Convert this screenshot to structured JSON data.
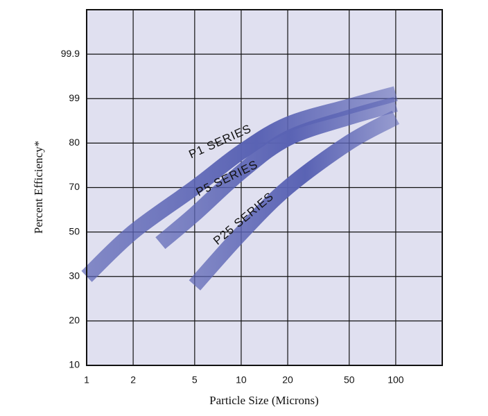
{
  "chart_data": {
    "type": "band",
    "x_label": "Particle Size (Microns)",
    "y_label": "Percent Efficiency*",
    "xscale": "log",
    "xlim": [
      1,
      200
    ],
    "xticks": [
      1,
      2,
      5,
      10,
      20,
      50,
      100
    ],
    "ylim": [
      10,
      99.99
    ],
    "yticks": [
      10,
      20,
      30,
      50,
      70,
      80,
      99,
      99.9
    ],
    "grid": true,
    "background": "#e0e0f0",
    "series": [
      {
        "name": "P1 SERIES",
        "color": "#5a63b4",
        "x": [
          1,
          2,
          5,
          10,
          20,
          50,
          100
        ],
        "values": [
          30,
          50,
          70,
          78,
          88,
          95.7,
          99.1
        ]
      },
      {
        "name": "P5 SERIES",
        "color": "#5a63b4",
        "x": [
          3,
          5,
          10,
          20,
          50,
          100
        ],
        "values": [
          45,
          58,
          73.5,
          82,
          91,
          96.6
        ]
      },
      {
        "name": "P25 SERIES",
        "color": "#5a63b4",
        "x": [
          5,
          10,
          20,
          50,
          100
        ],
        "values": [
          28,
          49.4,
          70,
          80.3,
          91
        ]
      }
    ]
  }
}
